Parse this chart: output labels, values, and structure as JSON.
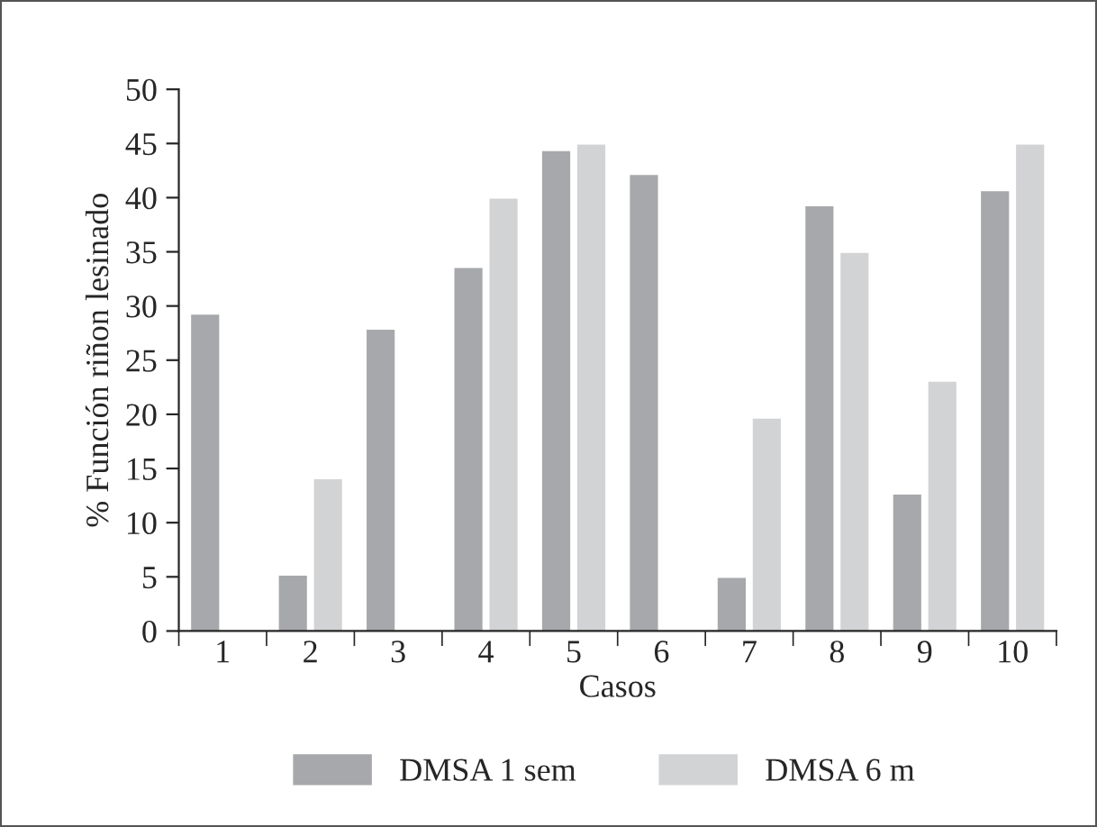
{
  "chart_data": {
    "type": "bar",
    "xlabel": "Casos",
    "ylabel": "% Función riñon lesinado",
    "categories": [
      "1",
      "2",
      "3",
      "4",
      "5",
      "6",
      "7",
      "8",
      "9",
      "10"
    ],
    "series": [
      {
        "name": "DMSA 1 sem",
        "color": "#a7a8ab",
        "values": [
          29.2,
          5.1,
          27.8,
          33.5,
          44.3,
          42.1,
          4.9,
          39.2,
          12.6,
          40.6
        ]
      },
      {
        "name": "DMSA 6 m",
        "color": "#d2d3d5",
        "values": [
          null,
          14,
          null,
          39.9,
          44.9,
          null,
          19.6,
          34.9,
          23,
          44.9
        ]
      }
    ],
    "ylim": [
      0,
      50
    ],
    "yticks": [
      0,
      5,
      10,
      15,
      20,
      25,
      30,
      35,
      40,
      45,
      50
    ],
    "grid": false,
    "legend": "bottom"
  }
}
